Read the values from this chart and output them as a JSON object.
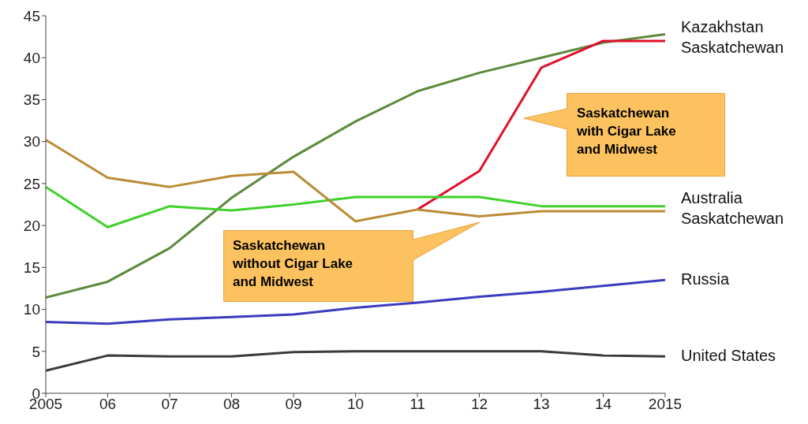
{
  "chart_data": {
    "type": "line",
    "categories": [
      "2005",
      "06",
      "07",
      "08",
      "09",
      "10",
      "11",
      "12",
      "13",
      "14",
      "2015"
    ],
    "ylim": [
      0,
      45
    ],
    "yticks": [
      0,
      5,
      10,
      15,
      20,
      25,
      30,
      35,
      40,
      45
    ],
    "grid": false,
    "legend": false,
    "marker": "none",
    "line_style": "solid",
    "series": [
      {
        "name": "Kazakhstan",
        "color": "#5b8a3c",
        "values": [
          11.4,
          13.3,
          17.3,
          23.3,
          28.2,
          32.4,
          36.0,
          38.2,
          40.0,
          41.8,
          42.8
        ]
      },
      {
        "name": "Saskatchewan",
        "color": "#e0102a",
        "values": [
          null,
          null,
          null,
          null,
          null,
          null,
          21.9,
          26.5,
          38.8,
          42.0,
          42.0
        ]
      },
      {
        "name": "Australia",
        "color": "#3fd12a",
        "values": [
          24.6,
          19.8,
          22.3,
          21.8,
          22.5,
          23.4,
          23.4,
          23.4,
          22.3,
          22.3,
          22.3
        ]
      },
      {
        "name": "Saskatchewan",
        "color": "#b98c36",
        "values": [
          30.2,
          25.7,
          24.6,
          25.9,
          26.4,
          20.5,
          21.9,
          21.1,
          21.7,
          21.7,
          21.7
        ]
      },
      {
        "name": "Russia",
        "color": "#3b3bbf",
        "values": [
          8.5,
          8.3,
          8.8,
          9.1,
          9.4,
          10.2,
          10.8,
          11.5,
          12.1,
          12.8,
          13.5
        ]
      },
      {
        "name": "United States",
        "color": "#3a3a3a",
        "values": [
          2.7,
          4.5,
          4.4,
          4.4,
          4.9,
          5.0,
          5.0,
          5.0,
          5.0,
          4.5,
          4.4
        ]
      }
    ],
    "annotations": [
      "Saskatchewan with Cigar Lake and Midwest",
      "Saskatchewan without Cigar Lake and Midwest"
    ]
  }
}
